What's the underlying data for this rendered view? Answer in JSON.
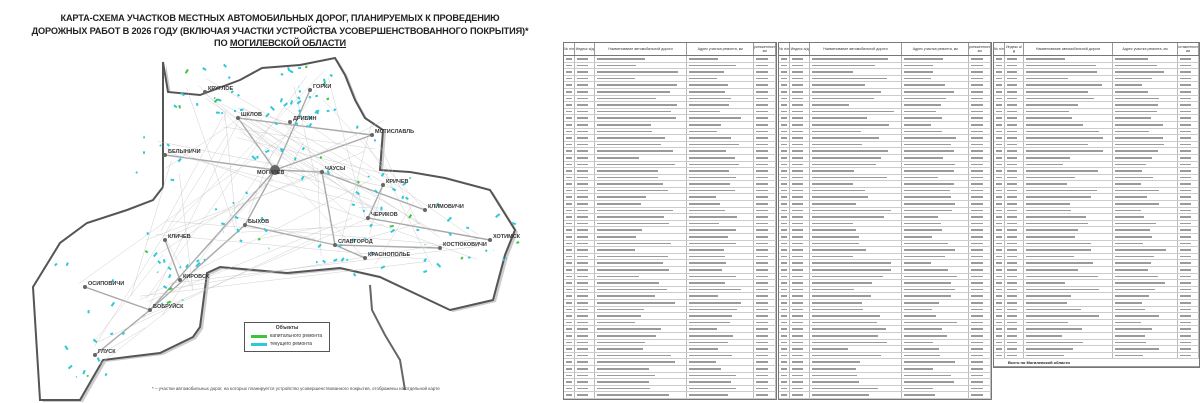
{
  "title": {
    "line1": "КАРТА-СХЕМА УЧАСТКОВ МЕСТНЫХ АВТОМОБИЛЬНЫХ ДОРОГ, ПЛАНИРУЕМЫХ К ПРОВЕДЕНИЮ",
    "line2": "ДОРОЖНЫХ РАБОТ В 2026 ГОДУ (ВКЛЮЧАЯ УЧАСТКИ УСТРОЙСТВА УСОВЕРШЕНСТВОВАННОГО ПОКРЫТИЯ)*",
    "line3_prefix": "ПО",
    "line3_region": "МОГИЛЕВСКОЙ ОБЛАСТИ"
  },
  "map": {
    "cities": [
      {
        "name": "МОГИЛЕВ",
        "capital": true
      },
      {
        "name": "ШКЛОВ"
      },
      {
        "name": "ГОРКИ"
      },
      {
        "name": "ДРИБИН"
      },
      {
        "name": "МСТИСЛАВЛЬ"
      },
      {
        "name": "БЕЛЫНИЧИ"
      },
      {
        "name": "ЧАУСЫ"
      },
      {
        "name": "КРИЧЕВ"
      },
      {
        "name": "КЛИМОВИЧИ"
      },
      {
        "name": "ЧЕРИКОВ"
      },
      {
        "name": "БЫХОВ"
      },
      {
        "name": "СЛАВГОРОД"
      },
      {
        "name": "КРАСНОПОЛЬЕ"
      },
      {
        "name": "КОСТЮКОВИЧИ"
      },
      {
        "name": "ХОТИМСК"
      },
      {
        "name": "КЛИЧЕВ"
      },
      {
        "name": "КИРОВСК"
      },
      {
        "name": "ОСИПОВИЧИ"
      },
      {
        "name": "БОБРУЙСК"
      },
      {
        "name": "ГЛУСК"
      },
      {
        "name": "КРУГЛОЕ"
      }
    ],
    "colors": {
      "capital_repair": "#3cc43c",
      "current_repair": "#2ec8d8",
      "border": "#555555",
      "roads": "#a0a0a0"
    }
  },
  "legend": {
    "title": "Объекты",
    "items": [
      "капитального ремонта",
      "текущего ремонта"
    ]
  },
  "footnote": "* – участки автомобильных дорог, на которых планируется устройство усовершенствованного покрытия, отображены на отдельной карте",
  "table": {
    "headers": [
      "№ п/п",
      "Индекс а/д",
      "Наименование автомобильной дороги",
      "Адрес участка ремонта, км",
      "Протяженность, км"
    ],
    "total_label": "Всего по Могилевской области"
  }
}
